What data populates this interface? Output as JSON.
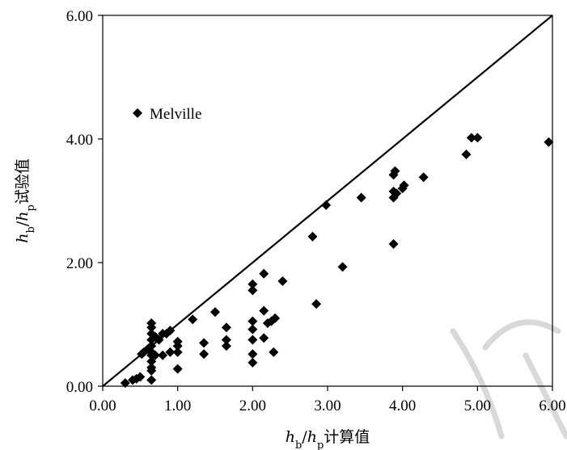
{
  "chart_data": {
    "type": "scatter",
    "xlabel_parts": [
      "h",
      "b",
      "/",
      "h",
      "p",
      "计算值"
    ],
    "ylabel_parts": [
      "h",
      "b",
      "/",
      "h",
      "p",
      "试验值"
    ],
    "xlim": [
      0,
      6
    ],
    "ylim": [
      0,
      6
    ],
    "x_ticks": [
      "0.00",
      "1.00",
      "2.00",
      "3.00",
      "4.00",
      "5.00",
      "6.00"
    ],
    "y_ticks": [
      "0.00",
      "2.00",
      "4.00",
      "6.00"
    ],
    "grid": false,
    "legend_position": "upper-left",
    "reference_line": {
      "from": [
        0,
        0
      ],
      "to": [
        6,
        6
      ]
    },
    "series": [
      {
        "name": "Melville",
        "marker": "diamond",
        "color": "#000000",
        "points": [
          [
            0.3,
            0.05
          ],
          [
            0.4,
            0.1
          ],
          [
            0.45,
            0.12
          ],
          [
            0.5,
            0.15
          ],
          [
            0.52,
            0.52
          ],
          [
            0.55,
            0.55
          ],
          [
            0.6,
            0.6
          ],
          [
            0.62,
            0.62
          ],
          [
            0.65,
            0.1
          ],
          [
            0.65,
            0.25
          ],
          [
            0.65,
            0.3
          ],
          [
            0.65,
            0.4
          ],
          [
            0.65,
            0.5
          ],
          [
            0.65,
            0.55
          ],
          [
            0.65,
            0.65
          ],
          [
            0.65,
            0.75
          ],
          [
            0.65,
            0.85
          ],
          [
            0.65,
            0.95
          ],
          [
            0.65,
            1.02
          ],
          [
            0.7,
            0.5
          ],
          [
            0.7,
            0.8
          ],
          [
            0.75,
            0.75
          ],
          [
            0.8,
            0.5
          ],
          [
            0.8,
            0.85
          ],
          [
            0.85,
            0.85
          ],
          [
            0.9,
            0.55
          ],
          [
            0.9,
            0.9
          ],
          [
            1.0,
            0.28
          ],
          [
            1.0,
            0.55
          ],
          [
            1.0,
            0.65
          ],
          [
            1.0,
            0.72
          ],
          [
            1.2,
            1.08
          ],
          [
            1.35,
            0.52
          ],
          [
            1.35,
            0.7
          ],
          [
            1.5,
            1.2
          ],
          [
            1.65,
            0.65
          ],
          [
            1.65,
            0.75
          ],
          [
            1.65,
            0.95
          ],
          [
            2.0,
            0.38
          ],
          [
            2.0,
            0.52
          ],
          [
            2.0,
            0.75
          ],
          [
            2.0,
            0.92
          ],
          [
            2.0,
            1.05
          ],
          [
            2.0,
            1.55
          ],
          [
            2.0,
            1.65
          ],
          [
            2.15,
            0.78
          ],
          [
            2.15,
            1.22
          ],
          [
            2.15,
            1.82
          ],
          [
            2.2,
            1.02
          ],
          [
            2.25,
            1.05
          ],
          [
            2.28,
            0.55
          ],
          [
            2.3,
            1.1
          ],
          [
            2.4,
            1.7
          ],
          [
            2.8,
            2.42
          ],
          [
            2.85,
            1.33
          ],
          [
            2.98,
            2.93
          ],
          [
            3.2,
            1.93
          ],
          [
            3.45,
            3.05
          ],
          [
            3.88,
            2.3
          ],
          [
            3.88,
            3.05
          ],
          [
            3.88,
            3.15
          ],
          [
            3.88,
            3.42
          ],
          [
            3.9,
            3.48
          ],
          [
            3.92,
            3.12
          ],
          [
            4.0,
            3.2
          ],
          [
            4.02,
            3.25
          ],
          [
            4.28,
            3.38
          ],
          [
            4.85,
            3.75
          ],
          [
            4.92,
            4.02
          ],
          [
            5.0,
            4.02
          ],
          [
            5.95,
            3.95
          ]
        ]
      }
    ]
  }
}
